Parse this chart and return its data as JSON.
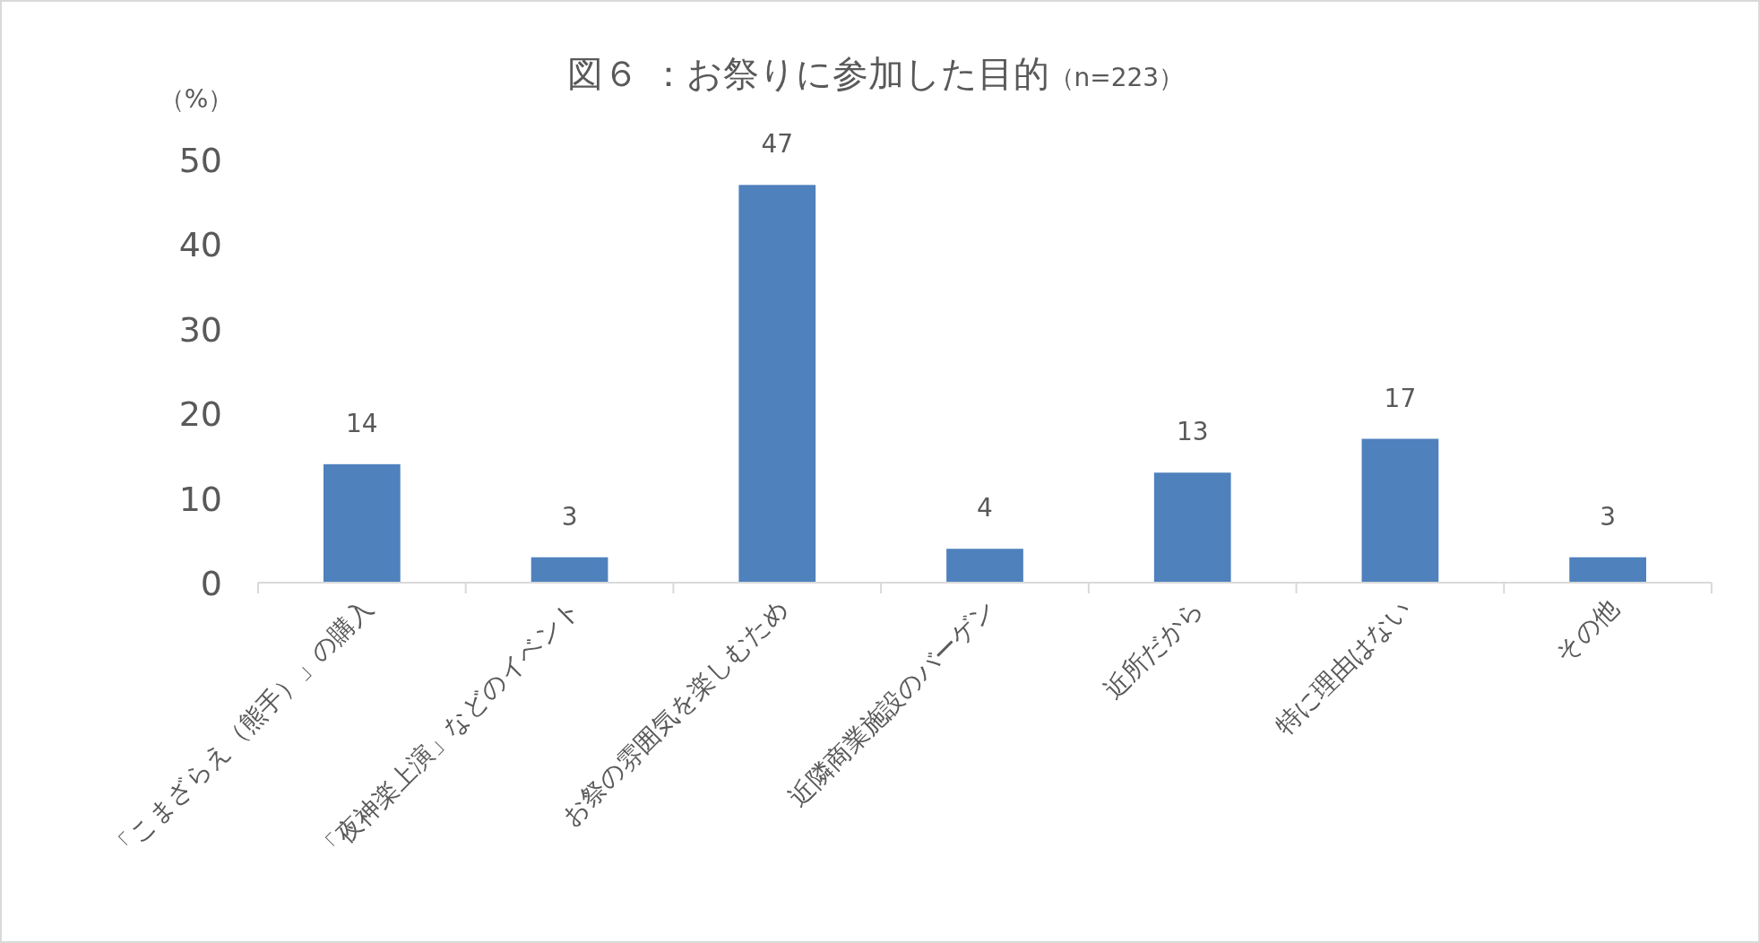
{
  "chart_data": {
    "type": "bar",
    "title": "図６ ：お祭りに参加した目的",
    "subtitle": "（n=223）",
    "ylabel": "（%）",
    "categories": [
      "「こまざらえ（熊手）」の購入",
      "「夜神楽上演」などのイベント",
      "お祭の雰囲気を楽しむため",
      "近隣商業施設のバーゲン",
      "近所だから",
      "特に理由はない",
      "その他"
    ],
    "values": [
      14,
      3,
      47,
      4,
      13,
      17,
      3
    ],
    "color": "#4f81bd",
    "ylim": [
      0,
      50
    ],
    "yticks": [
      0,
      10,
      20,
      30,
      40,
      50
    ],
    "data_labels": true
  }
}
